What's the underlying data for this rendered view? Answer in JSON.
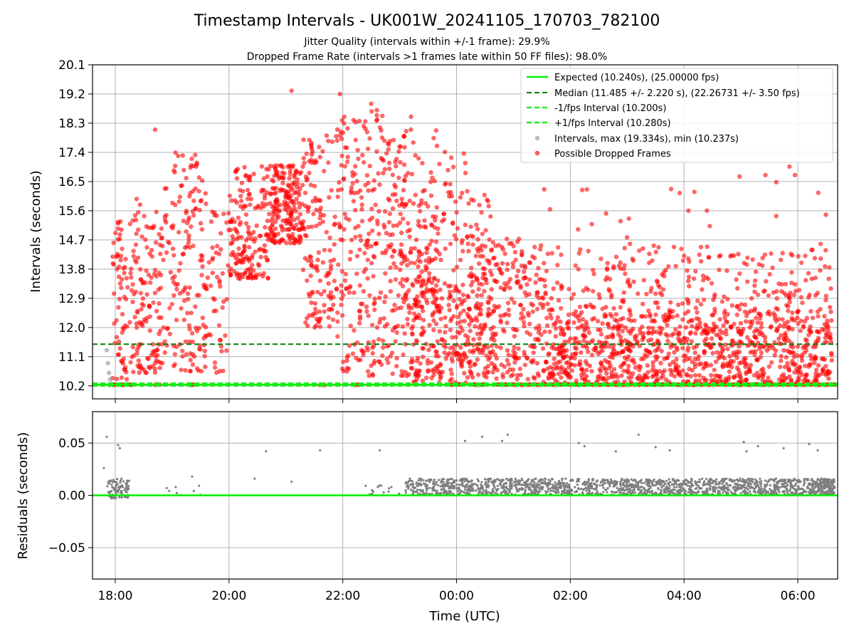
{
  "title": "Timestamp Intervals - UK001W_20241105_170703_782100",
  "subtitle_lines": [
    "Jitter Quality (intervals within +/-1 frame): 29.9%",
    "Dropped Frame Rate (intervals >1 frames late within 50 FF files): 98.0%"
  ],
  "colors": {
    "expected": "#00ee00",
    "median": "#008000",
    "fps_interval": "#22ee22",
    "intervals": "#999999",
    "dropped": "#ff0000",
    "residuals": "#7f7f7f",
    "grid": "#b0b0b0"
  },
  "chart_data": [
    {
      "type": "scatter",
      "name": "intervals-panel",
      "xlabel": "",
      "ylabel": "Intervals (seconds)",
      "x_unit": "hours since 00:00 UTC (negative = previous day)",
      "xlim": [
        -6.4,
        6.7
      ],
      "ylim": [
        9.8,
        20.1
      ],
      "yticks": [
        "10.2",
        "11.1",
        "12.0",
        "12.9",
        "13.8",
        "14.7",
        "15.6",
        "16.5",
        "17.4",
        "18.3",
        "19.2",
        "20.1"
      ],
      "grid": true,
      "legend_position": "top-right",
      "legend": [
        "Expected (10.240s), (25.00000 fps)",
        "Median (11.485 +/- 2.220 s), (22.26731 +/- 3.50 fps)",
        "-1/fps Interval (10.200s)",
        "+1/fps Interval (10.280s)",
        "Intervals, max (19.334s), min (10.237s)",
        "Possible Dropped Frames"
      ],
      "lines": {
        "expected": 10.24,
        "median": 11.485,
        "minus_fps": 10.2,
        "plus_fps": 10.28
      },
      "series": [
        {
          "name": "Intervals, max (19.334s), min (10.237s)",
          "style": "points",
          "points": [
            [
              -6.15,
              11.3
            ],
            [
              -6.13,
              10.9
            ],
            [
              -6.11,
              10.6
            ],
            [
              -6.09,
              10.4
            ]
          ]
        },
        {
          "name": "Possible Dropped Frames",
          "style": "points",
          "regions": [
            {
              "x": [
                -6.05,
                -5.8
              ],
              "y": [
                10.4,
                15.5
              ],
              "n": 60
            },
            {
              "x": [
                -5.8,
                -5.2
              ],
              "y": [
                10.6,
                16.0
              ],
              "n": 130
            },
            {
              "x": [
                -5.2,
                -4.4
              ],
              "y": [
                10.6,
                17.4
              ],
              "n": 170
            },
            {
              "x": [
                -4.4,
                -4.0
              ],
              "y": [
                10.6,
                15.6
              ],
              "n": 50
            },
            {
              "x": [
                -4.0,
                -3.3
              ],
              "y": [
                13.5,
                17.0
              ],
              "n": 170
            },
            {
              "x": [
                -3.3,
                -2.7
              ],
              "y": [
                14.6,
                17.0
              ],
              "n": 200
            },
            {
              "x": [
                -2.7,
                -2.1
              ],
              "y": [
                12.0,
                18.0
              ],
              "n": 140
            },
            {
              "x": [
                -2.1,
                -1.2
              ],
              "y": [
                10.5,
                18.7
              ],
              "n": 230
            },
            {
              "x": [
                -1.2,
                -0.3
              ],
              "y": [
                10.5,
                18.2
              ],
              "n": 200
            },
            {
              "x": [
                -0.3,
                0.2
              ],
              "y": [
                11.0,
                17.5
              ],
              "n": 80
            },
            {
              "x": [
                0.2,
                0.6
              ],
              "y": [
                10.4,
                16.5
              ],
              "n": 60
            },
            {
              "x": [
                -1.0,
                -0.3
              ],
              "y": [
                12.5,
                16.0
              ],
              "n": 80
            },
            {
              "x": [
                -0.8,
                0.2
              ],
              "y": [
                10.3,
                13.5
              ],
              "n": 120
            },
            {
              "x": [
                0.2,
                1.5
              ],
              "y": [
                10.4,
                14.8
              ],
              "n": 280
            },
            {
              "x": [
                1.5,
                6.6
              ],
              "y": [
                10.3,
                12.5
              ],
              "n": 950
            },
            {
              "x": [
                1.5,
                6.6
              ],
              "y": [
                12.5,
                14.5
              ],
              "n": 260
            },
            {
              "x": [
                1.5,
                6.6
              ],
              "y": [
                14.5,
                17.0
              ],
              "n": 25
            }
          ],
          "explicit_points": [
            [
              -2.9,
              19.3
            ],
            [
              -2.05,
              19.2
            ],
            [
              -1.5,
              18.9
            ],
            [
              -1.4,
              18.7
            ],
            [
              -0.8,
              18.5
            ],
            [
              -5.3,
              18.1
            ],
            [
              5.43,
              16.7
            ],
            [
              5.95,
              16.7
            ]
          ],
          "baseline": {
            "y": 10.24,
            "segments": [
              [
                -6.1,
                -5.7
              ],
              [
                -5.3,
                -5.2
              ],
              [
                -4.7,
                -4.6
              ],
              [
                -2.4,
                -2.3
              ],
              [
                -1.8,
                -1.7
              ],
              [
                -0.1,
                0.1
              ],
              [
                0.3,
                0.5
              ],
              [
                0.7,
                6.65
              ]
            ]
          }
        }
      ]
    },
    {
      "type": "scatter",
      "name": "residuals-panel",
      "xlabel": "Time (UTC)",
      "ylabel": "Residuals (seconds)",
      "x_unit": "hours since 00:00 UTC (negative = previous day)",
      "xlim": [
        -6.4,
        6.7
      ],
      "ylim": [
        -0.08,
        0.08
      ],
      "xticks": [
        {
          "label": "18:00",
          "value": -6
        },
        {
          "label": "20:00",
          "value": -4
        },
        {
          "label": "22:00",
          "value": -2
        },
        {
          "label": "00:00",
          "value": 0
        },
        {
          "label": "02:00",
          "value": 2
        },
        {
          "label": "04:00",
          "value": 4
        },
        {
          "label": "06:00",
          "value": 6
        }
      ],
      "yticks": [
        {
          "label": "0.05",
          "value": 0.05
        },
        {
          "label": "0.00",
          "value": 0.0
        },
        {
          "label": "−0.05",
          "value": -0.05
        }
      ],
      "grid": true,
      "zero_line": 0.0,
      "series": [
        {
          "name": "residuals",
          "style": "points",
          "regions": [
            {
              "x": [
                -6.15,
                -5.75
              ],
              "y": [
                -0.003,
                0.016
              ],
              "n": 90
            },
            {
              "x": [
                -5.1,
                -4.4
              ],
              "y": [
                0.0,
                0.01
              ],
              "n": 8
            },
            {
              "x": [
                -1.6,
                -1.0
              ],
              "y": [
                0.0,
                0.01
              ],
              "n": 15
            },
            {
              "x": [
                -0.9,
                0.0
              ],
              "y": [
                0.0,
                0.016
              ],
              "n": 180
            },
            {
              "x": [
                0.0,
                6.6
              ],
              "y": [
                0.0,
                0.016
              ],
              "n": 1500
            },
            {
              "x": [
                6.2,
                6.65
              ],
              "y": [
                0.0,
                0.016
              ],
              "n": 120
            }
          ],
          "explicit_points": [
            [
              -6.15,
              0.056
            ],
            [
              -6.2,
              0.026
            ],
            [
              -5.95,
              0.048
            ],
            [
              -5.92,
              0.045
            ],
            [
              -4.65,
              0.018
            ],
            [
              -3.55,
              0.016
            ],
            [
              -3.35,
              0.042
            ],
            [
              -2.9,
              0.013
            ],
            [
              -2.4,
              0.043
            ],
            [
              -1.35,
              0.043
            ],
            [
              0.15,
              0.052
            ],
            [
              0.45,
              0.056
            ],
            [
              0.8,
              0.052
            ],
            [
              0.9,
              0.058
            ],
            [
              2.15,
              0.05
            ],
            [
              2.25,
              0.047
            ],
            [
              2.8,
              0.042
            ],
            [
              3.2,
              0.058
            ],
            [
              3.5,
              0.046
            ],
            [
              3.75,
              0.043
            ],
            [
              5.05,
              0.051
            ],
            [
              5.1,
              0.042
            ],
            [
              5.3,
              0.047
            ],
            [
              5.75,
              0.045
            ],
            [
              6.2,
              0.049
            ],
            [
              6.35,
              0.043
            ]
          ]
        }
      ]
    }
  ]
}
